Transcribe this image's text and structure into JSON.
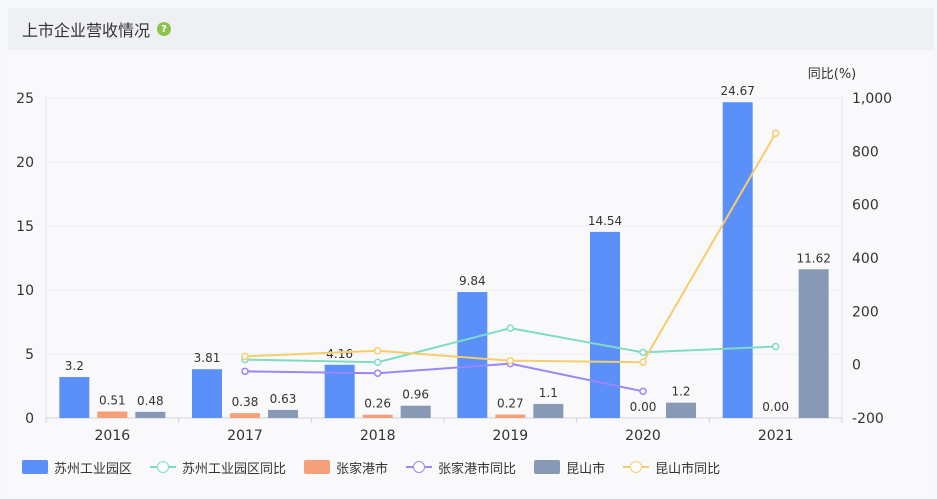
{
  "header": {
    "title": "上市企业营收情况",
    "help_icon": "question-mark-icon"
  },
  "chart_data": {
    "type": "bar",
    "categories": [
      "2016",
      "2017",
      "2018",
      "2019",
      "2020",
      "2021"
    ],
    "y_left": {
      "min": 0,
      "max": 25,
      "ticks": [
        0,
        5,
        10,
        15,
        20,
        25
      ]
    },
    "y_right": {
      "label": "同比(%)",
      "min": -200,
      "max": 1000,
      "ticks": [
        "-200",
        "0",
        "200",
        "400",
        "600",
        "800",
        "1,000"
      ],
      "tick_values": [
        -200,
        0,
        200,
        400,
        600,
        800,
        1000
      ]
    },
    "bar_series": [
      {
        "name": "苏州工业园区",
        "color": "#5b8ff9",
        "values": [
          3.2,
          3.81,
          4.16,
          9.84,
          14.54,
          24.67
        ],
        "labels": [
          "3.2",
          "3.81",
          "4.16",
          "9.84",
          "14.54",
          "24.67"
        ]
      },
      {
        "name": "张家港市",
        "color": "#f6a07a",
        "values": [
          0.51,
          0.38,
          0.26,
          0.27,
          0.0,
          0.0
        ],
        "labels": [
          "0.51",
          "0.38",
          "0.26",
          "0.27",
          "0.00",
          "0.00"
        ]
      },
      {
        "name": "昆山市",
        "color": "#8799b4",
        "values": [
          0.48,
          0.63,
          0.96,
          1.1,
          1.2,
          11.62
        ],
        "labels": [
          "0.48",
          "0.63",
          "0.96",
          "1.1",
          "1.2",
          "11.62"
        ]
      }
    ],
    "line_series": [
      {
        "name": "苏州工业园区同比",
        "color": "#7fdcc4",
        "values": [
          null,
          19,
          9,
          137,
          46,
          68
        ]
      },
      {
        "name": "张家港市同比",
        "color": "#9b87f5",
        "values": [
          null,
          -25,
          -32,
          4,
          -100,
          null
        ]
      },
      {
        "name": "昆山市同比",
        "color": "#f5cd6b",
        "values": [
          null,
          31,
          52,
          15,
          9,
          868
        ]
      }
    ],
    "legend": {
      "position": "bottom-left"
    },
    "grid": true
  },
  "legend_items": [
    {
      "label": "苏州工业园区",
      "kind": "bar",
      "color": "#5b8ff9"
    },
    {
      "label": "苏州工业园区同比",
      "kind": "line",
      "color": "#7fdcc4"
    },
    {
      "label": "张家港市",
      "kind": "bar",
      "color": "#f6a07a"
    },
    {
      "label": "张家港市同比",
      "kind": "line",
      "color": "#9b87f5"
    },
    {
      "label": "昆山市",
      "kind": "bar",
      "color": "#8799b4"
    },
    {
      "label": "昆山市同比",
      "kind": "line",
      "color": "#f5cd6b"
    }
  ]
}
